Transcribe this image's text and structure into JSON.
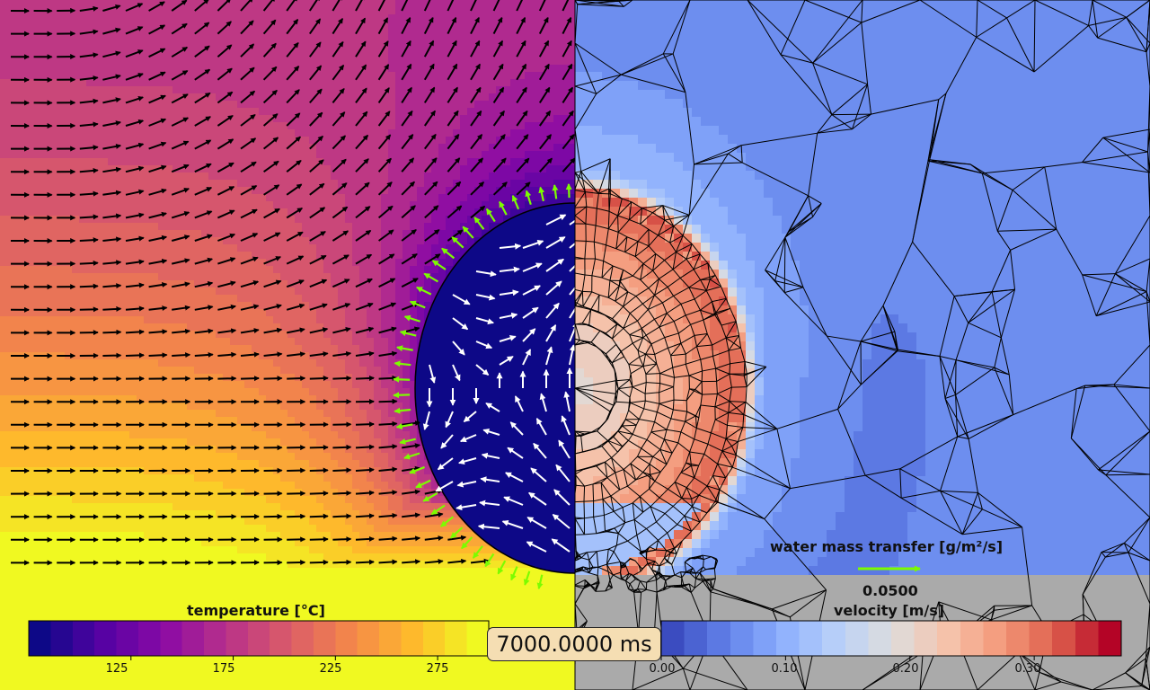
{
  "chart_data": [
    {
      "type": "heatmap",
      "panel": "left",
      "colorbar_label": "temperature [°C]",
      "colormap": "plasma",
      "range": [
        75,
        300
      ],
      "ticks": [
        125,
        175,
        225,
        275
      ],
      "levels": 21,
      "field_description_values": {
        "ambient_far_field": 300,
        "droplet_interior": 75
      },
      "quiver": {
        "outside_color": "#000000",
        "inside_color": "#ffffff",
        "interface_color": "#7cfc00"
      }
    },
    {
      "type": "heatmap",
      "panel": "right",
      "colorbar_label": "velocity [m/s]",
      "colormap": "coolwarm",
      "range": [
        0.0,
        0.37
      ],
      "ticks": [
        0.0,
        0.1,
        0.2,
        0.3
      ],
      "tick_labels": [
        "0.00",
        "0.10",
        "0.20",
        "0.30"
      ],
      "levels": 20,
      "mesh": "triangular",
      "mesh_color": "#000000",
      "grey_region_color": "#aaaaaa"
    },
    {
      "type": "legend",
      "quiver_key_label": "water mass transfer [g/m²/s]",
      "quiver_key_value": "0.0500",
      "quiver_key_color": "#7cfc00"
    }
  ],
  "time_label": "7000.0000 ms"
}
